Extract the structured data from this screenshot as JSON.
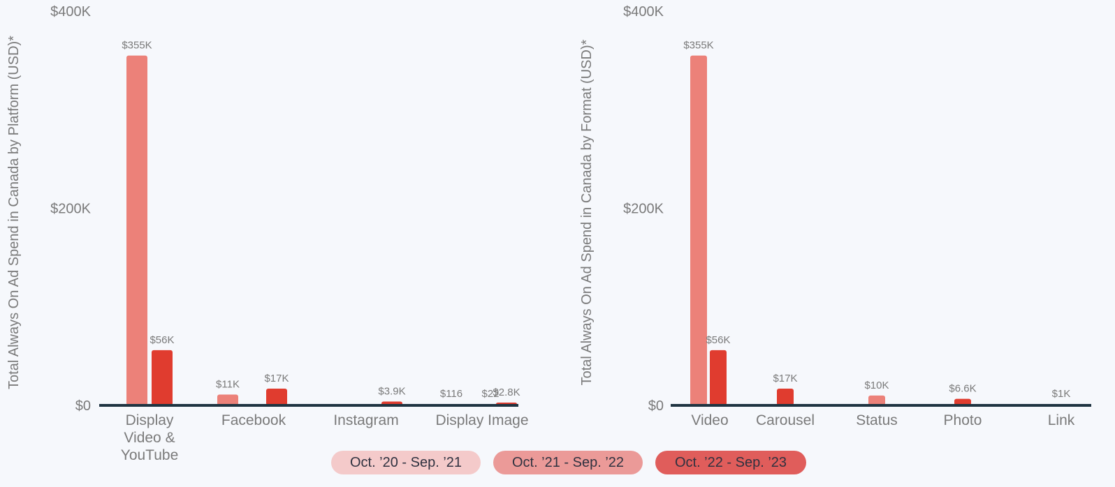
{
  "colors": {
    "background": "#f6f8fc",
    "axis_line": "#1f3442",
    "text": "#7a7a7a",
    "series_1": "#f3c9c9",
    "series_2": "#ec8179",
    "series_3": "#e03c2f",
    "label_series_2": "#ec9a95",
    "legend_1": "#f4caca",
    "legend_2": "#eb9a98",
    "legend_3": "#e05d5b"
  },
  "legend": [
    {
      "label": "Oct. ’20 - Sep. ’21"
    },
    {
      "label": "Oct. ’21 - Sep. ’22"
    },
    {
      "label": "Oct. ’22 - Sep. ’23"
    }
  ],
  "chart_data": [
    {
      "type": "bar",
      "ylabel": "Total Always On Ad Spend in Canada by Platform (USD)*",
      "xlabel": "",
      "ylim": [
        0,
        400000
      ],
      "yticks": [
        {
          "value": 0,
          "label": "$0"
        },
        {
          "value": 200000,
          "label": "$200K"
        },
        {
          "value": 400000,
          "label": "$400K"
        }
      ],
      "grid": false,
      "categories": [
        {
          "label": [
            "Display",
            "Video &",
            "YouTube"
          ]
        },
        {
          "label": [
            "Facebook"
          ]
        },
        {
          "label": [
            "Instagram"
          ]
        },
        {
          "label": [
            "Display Image"
          ]
        }
      ],
      "series": [
        {
          "name": "Oct. ’20 - Sep. ’21",
          "values": [
            null,
            null,
            null,
            116
          ],
          "labels": [
            null,
            null,
            null,
            "$116"
          ]
        },
        {
          "name": "Oct. ’21 - Sep. ’22",
          "values": [
            355000,
            11000,
            null,
            22
          ],
          "labels": [
            "$355K",
            "$11K",
            null,
            "$22"
          ]
        },
        {
          "name": "Oct. ’22 - Sep. ’23",
          "values": [
            56000,
            17000,
            3900,
            2800
          ],
          "labels": [
            "$56K",
            "$17K",
            "$3.9K",
            "$2.8K"
          ]
        }
      ]
    },
    {
      "type": "bar",
      "ylabel": "Total Always On Ad Spend in Canada by Format (USD)*",
      "xlabel": "",
      "ylim": [
        0,
        400000
      ],
      "yticks": [
        {
          "value": 0,
          "label": "$0"
        },
        {
          "value": 200000,
          "label": "$200K"
        },
        {
          "value": 400000,
          "label": "$400K"
        }
      ],
      "grid": false,
      "categories": [
        {
          "label": [
            "Video"
          ]
        },
        {
          "label": [
            "Carousel"
          ]
        },
        {
          "label": [
            "Status"
          ]
        },
        {
          "label": [
            "Photo"
          ]
        },
        {
          "label": [
            "Link"
          ]
        }
      ],
      "series": [
        {
          "name": "Oct. ’20 - Sep. ’21",
          "values": [
            null,
            null,
            null,
            null,
            null
          ],
          "labels": [
            null,
            null,
            null,
            null,
            null
          ]
        },
        {
          "name": "Oct. ’21 - Sep. ’22",
          "values": [
            355000,
            null,
            10000,
            null,
            1000
          ],
          "labels": [
            "$355K",
            null,
            "$10K",
            null,
            "$1K"
          ]
        },
        {
          "name": "Oct. ’22 - Sep. ’23",
          "values": [
            56000,
            17000,
            null,
            6600,
            null
          ],
          "labels": [
            "$56K",
            "$17K",
            null,
            "$6.6K",
            null
          ]
        }
      ]
    }
  ]
}
